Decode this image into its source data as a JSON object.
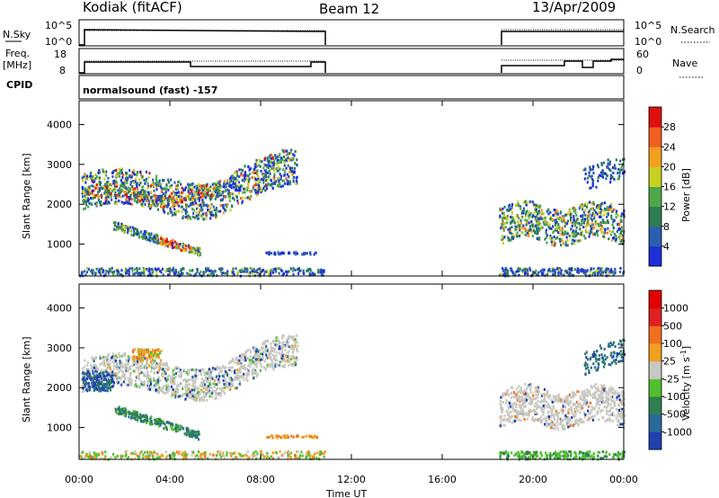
{
  "header": {
    "title": "Kodiak (fitACF)",
    "beam": "Beam 12",
    "date": "13/Apr/2009"
  },
  "sky_panel": {
    "left_label": "N.Sky",
    "right_label": "N.Search",
    "tick_top": "10^5",
    "tick_bottom": "10^0",
    "right_tick_top": "10^5",
    "right_tick_bottom": "10^0"
  },
  "freq_panel": {
    "left_label_line1": "Freq.",
    "left_label_line2": "[MHz]",
    "tick_top": "18",
    "tick_bottom": "8",
    "right_label": "Nave",
    "right_tick_top": "60",
    "right_tick_bottom": "0"
  },
  "cpid_panel": {
    "left_label": "CPID",
    "program": "normalsound (fast) -157"
  },
  "chart_data": [
    {
      "type": "heatmap",
      "name_label": "Power",
      "colorbar_label": "Power [dB]",
      "ylabel": "Slant Range [km]",
      "ylim": [
        200,
        4600
      ],
      "yticks": [
        1000,
        2000,
        3000,
        4000
      ],
      "colorbar_ticks": [
        "4",
        "8",
        "12",
        "16",
        "20",
        "24",
        "28"
      ],
      "colorbar_colors": [
        "#1f2fd8",
        "#2a5fb0",
        "#2e7d52",
        "#4ea84a",
        "#c8d020",
        "#f2a020",
        "#f06020",
        "#e01010"
      ],
      "data_gap": [
        "10:50",
        "18:30"
      ]
    },
    {
      "type": "heatmap",
      "name_label": "Velocity",
      "colorbar_label": "Velocity [m s^-1]",
      "ylabel": "Slant Range [km]",
      "ylim": [
        200,
        4600
      ],
      "yticks": [
        1000,
        2000,
        3000,
        4000
      ],
      "colorbar_ticks": [
        "1000",
        "500",
        "100",
        "25",
        "-25",
        "-100",
        "-500",
        "-1000"
      ],
      "colorbar_colors": [
        "#2040b0",
        "#2a6a9a",
        "#2e8050",
        "#50c030",
        "#c8c8c0",
        "#f0a020",
        "#f07020",
        "#e02020",
        "#e00000"
      ],
      "data_gap": [
        "10:50",
        "18:30"
      ]
    }
  ],
  "xaxis": {
    "label": "Time UT",
    "ticks": [
      "00:00",
      "04:00",
      "08:00",
      "12:00",
      "16:00",
      "20:00",
      "00:00"
    ]
  }
}
